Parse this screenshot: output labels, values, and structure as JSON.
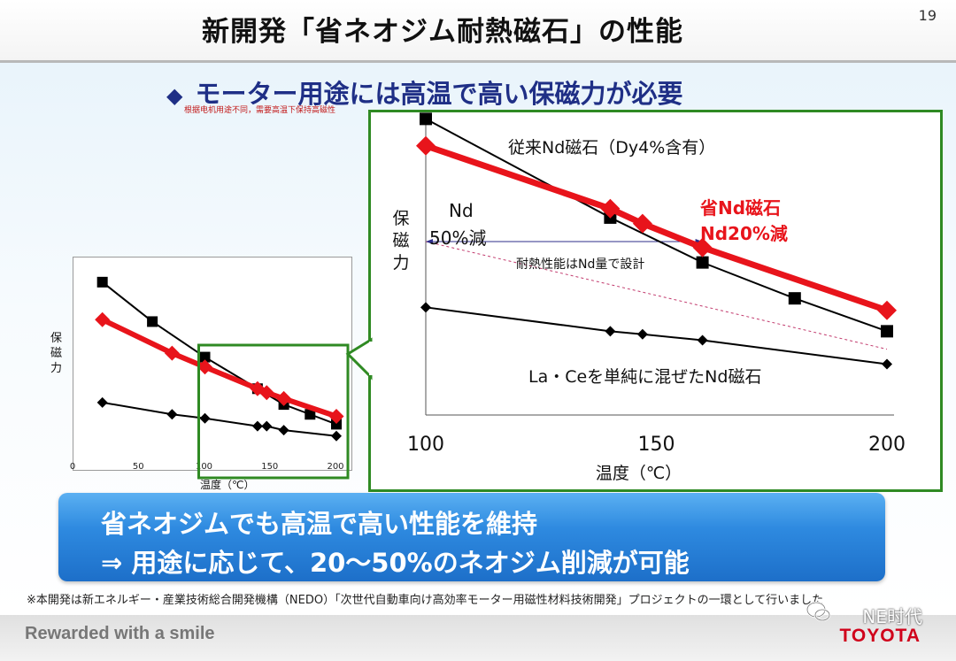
{
  "title": "新開発「省ネオジム耐熱磁石」の性能",
  "page_number": "19",
  "subheading": "モーター用途には高温で高い保磁力が必要",
  "subheading_bullet": "◆",
  "chinese_note": "根据电机用途不同，需要高温下保持高磁性",
  "banner": {
    "line1": "省ネオジムでも高温で高い性能を維持",
    "line2": "⇒ 用途に応じて、20～50%のネオジム削減が可能"
  },
  "footnote": "※本開発は新エネルギー・産業技術総合開発機構（NEDO）「次世代自動車向け高効率モーター用磁性材料技術開発」プロジェクトの一環として行いました",
  "footer": {
    "tagline": "Rewarded with a smile",
    "brand": "TOYOTA",
    "wechat_watermark": "NE时代"
  },
  "colors": {
    "accent_red": "#e8141b",
    "series_black": "#000000",
    "zoom_frame_green": "#2f8a23",
    "banner_blue": "#2e8ae0",
    "subheading_navy": "#1f2f86"
  },
  "chart_data": [
    {
      "type": "line",
      "xlabel": "温度（℃）",
      "ylabel": "保磁力",
      "xlim": [
        0,
        200
      ],
      "x_ticks": [
        "0",
        "50",
        "100",
        "150",
        "200"
      ],
      "y_ticks_shown": false,
      "ylim": [
        0,
        1
      ],
      "series": [
        {
          "id": "conventional",
          "color": "#000000",
          "marker": "square",
          "width": 2,
          "x": [
            22,
            60,
            100,
            140,
            160,
            180,
            200
          ],
          "y": [
            0.92,
            0.72,
            0.54,
            0.38,
            0.3,
            0.25,
            0.2
          ]
        },
        {
          "id": "saving",
          "color": "#e8141b",
          "marker": "diamond",
          "width": 6,
          "x": [
            22,
            75,
            100,
            140,
            147,
            160,
            200
          ],
          "y": [
            0.73,
            0.56,
            0.49,
            0.38,
            0.36,
            0.33,
            0.24
          ]
        },
        {
          "id": "lace",
          "color": "#000000",
          "marker": "diamond",
          "width": 2,
          "x": [
            22,
            75,
            100,
            140,
            147,
            160,
            200
          ],
          "y": [
            0.31,
            0.25,
            0.23,
            0.19,
            0.19,
            0.17,
            0.14
          ]
        }
      ],
      "zoom_region": {
        "x": [
          100,
          200
        ]
      }
    },
    {
      "type": "line",
      "xlabel": "温度（℃）",
      "ylabel": "保磁力",
      "xlim": [
        100,
        200
      ],
      "x_ticks": [
        "100",
        "150",
        "200"
      ],
      "y_ticks_shown": false,
      "ylim": [
        0,
        1
      ],
      "series": [
        {
          "name": "従来Nd磁石（Dy4%含有）",
          "color": "#000000",
          "marker": "square",
          "width": 2,
          "x": [
            100,
            140,
            160,
            180,
            200
          ],
          "y": [
            0.99,
            0.66,
            0.51,
            0.39,
            0.28
          ]
        },
        {
          "name": "省Nd磁石\nNd20%減",
          "color": "#e8141b",
          "marker": "diamond",
          "width": 7,
          "x": [
            100,
            140,
            147,
            160,
            200
          ],
          "y": [
            0.9,
            0.69,
            0.64,
            0.56,
            0.35
          ]
        },
        {
          "name": "La・Ceを単純に混ぜたNd磁石",
          "color": "#000000",
          "marker": "diamond",
          "width": 2,
          "x": [
            100,
            140,
            147,
            160,
            200
          ],
          "y": [
            0.36,
            0.28,
            0.27,
            0.25,
            0.17
          ]
        }
      ],
      "annotations": {
        "nd_reduction_label": "Nd",
        "nd_reduction_value": "50%減",
        "heat_design_note": "耐熱性能はNd量で設計",
        "saving_label_line1": "省Nd磁石",
        "saving_label_line2": "Nd20%減",
        "conventional_label": "従来Nd磁石（Dy4%含有）",
        "lace_label": "La・Ceを単純に混ぜたNd磁石"
      }
    }
  ]
}
